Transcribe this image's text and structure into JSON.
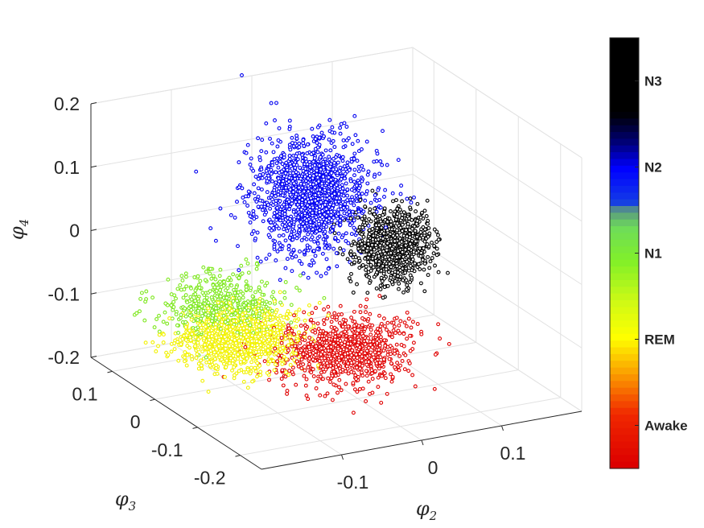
{
  "chart_data": {
    "type": "scatter",
    "projection": "3d",
    "xlabel": {
      "symbol": "φ",
      "subscript": "2"
    },
    "ylabel": {
      "symbol": "φ",
      "subscript": "3"
    },
    "zlabel": {
      "symbol": "φ",
      "subscript": "4"
    },
    "x_ticks": [
      "-0.1",
      "0",
      "0.1"
    ],
    "y_ticks": [
      "0.1",
      "0",
      "-0.1",
      "-0.2"
    ],
    "z_ticks": [
      "0.2",
      "0.1",
      "0",
      "-0.1",
      "-0.2"
    ],
    "xlim": [
      -0.2,
      0.2
    ],
    "ylim": [
      -0.25,
      0.15
    ],
    "zlim": [
      -0.2,
      0.2
    ],
    "grid": true,
    "marker": "open circle",
    "colorbar": {
      "position": "right",
      "labels": [
        "N3",
        "N2",
        "N1",
        "REM",
        "Awake"
      ],
      "colors": [
        "#000000",
        "#0000ff",
        "#80f000",
        "#ffff00",
        "#ff0000"
      ]
    },
    "clusters": [
      {
        "stage": "Awake",
        "color": "#e00000",
        "x_center": -0.02,
        "y_center": -0.1,
        "z_center": -0.12,
        "spread": [
          0.07,
          0.06,
          0.03
        ],
        "point_count": 900
      },
      {
        "stage": "REM",
        "color": "#f2f200",
        "x_center": -0.12,
        "y_center": -0.05,
        "z_center": -0.1,
        "spread": [
          0.06,
          0.05,
          0.03
        ],
        "point_count": 1100
      },
      {
        "stage": "N1",
        "color": "#7ee81e",
        "x_center": -0.12,
        "y_center": 0.0,
        "z_center": -0.07,
        "spread": [
          0.06,
          0.05,
          0.03
        ],
        "point_count": 500
      },
      {
        "stage": "N2",
        "color": "#0000f0",
        "x_center": 0.02,
        "y_center": 0.05,
        "z_center": 0.05,
        "spread": [
          0.06,
          0.05,
          0.06
        ],
        "point_count": 1500
      },
      {
        "stage": "N3",
        "color": "#000000",
        "x_center": 0.12,
        "y_center": 0.05,
        "z_center": -0.05,
        "spread": [
          0.04,
          0.03,
          0.04
        ],
        "point_count": 900
      }
    ]
  }
}
